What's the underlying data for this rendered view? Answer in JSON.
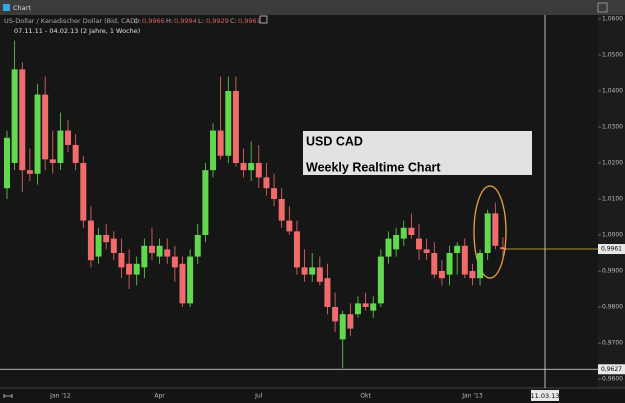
{
  "window_title": "Chart",
  "chart_data": {
    "type": "candlestick",
    "title": "US-Dollar / Kanadischer Dollar (Bid, CAD)",
    "ohlc_info": [
      {
        "label": "O:",
        "text": "0,9966"
      },
      {
        "label": "H:",
        "text": "0,9994"
      },
      {
        "label": "L:",
        "text": "0,9929"
      },
      {
        "label": "C:",
        "text": "0,9961"
      }
    ],
    "subtitle": "07.11.11 - 04.02.13 (2 Jahre, 1 Woche)",
    "annotation": [
      "USD CAD",
      "Weekly Realtime Chart"
    ],
    "categories": [
      null,
      null,
      null,
      null,
      null,
      null,
      null,
      "Jan '12",
      null,
      null,
      null,
      null,
      null,
      null,
      null,
      null,
      null,
      null,
      null,
      null,
      "Apr",
      null,
      null,
      null,
      null,
      null,
      null,
      null,
      null,
      null,
      null,
      null,
      null,
      "Jul",
      null,
      null,
      null,
      null,
      null,
      null,
      null,
      null,
      null,
      null,
      null,
      null,
      null,
      "Okt",
      null,
      null,
      null,
      null,
      null,
      null,
      null,
      null,
      null,
      null,
      null,
      null,
      null,
      "Jan '13",
      null,
      null,
      null,
      null
    ],
    "open": [
      1.013,
      1.02,
      1.046,
      1.018,
      1.017,
      1.039,
      1.021,
      1.02,
      1.029,
      1.025,
      1.02,
      1.004,
      0.994,
      1.0,
      0.999,
      0.995,
      0.992,
      0.989,
      0.991,
      0.997,
      0.994,
      0.996,
      0.994,
      0.992,
      0.981,
      0.994,
      1.0,
      1.018,
      1.029,
      1.022,
      1.04,
      1.02,
      1.018,
      1.02,
      1.016,
      1.013,
      1.01,
      1.004,
      1.001,
      0.991,
      0.989,
      0.991,
      0.988,
      0.98,
      0.971,
      0.978,
      0.978,
      0.981,
      0.979,
      0.981,
      0.994,
      0.996,
      0.999,
      1.002,
      0.999,
      0.996,
      0.995,
      0.99,
      0.989,
      0.995,
      0.997,
      0.99,
      0.988,
      0.995,
      1.006,
      0.9966
    ],
    "high": [
      1.029,
      1.054,
      1.048,
      1.024,
      1.042,
      1.044,
      1.029,
      1.034,
      1.032,
      1.028,
      1.022,
      1.008,
      1.002,
      1.003,
      1.001,
      0.999,
      0.996,
      0.994,
      0.999,
      1.002,
      0.999,
      0.999,
      0.997,
      0.994,
      0.996,
      1.003,
      1.02,
      1.031,
      1.044,
      1.044,
      1.044,
      1.024,
      1.026,
      1.025,
      1.02,
      1.017,
      1.013,
      1.008,
      1.004,
      0.996,
      0.995,
      0.994,
      0.992,
      0.984,
      0.979,
      0.981,
      0.983,
      0.984,
      0.983,
      0.996,
      1.001,
      1.002,
      1.004,
      1.006,
      1.003,
      0.999,
      0.998,
      0.993,
      0.997,
      0.998,
      0.999,
      0.992,
      0.996,
      1.007,
      1.009,
      0.9994
    ],
    "low": [
      1.01,
      1.018,
      1.012,
      1.015,
      1.014,
      1.018,
      1.017,
      1.018,
      1.023,
      1.018,
      1.002,
      0.991,
      0.992,
      0.996,
      0.993,
      0.988,
      0.985,
      0.986,
      0.988,
      0.993,
      0.992,
      0.992,
      0.987,
      0.98,
      0.98,
      0.992,
      0.998,
      1.016,
      1.021,
      1.02,
      1.019,
      1.016,
      1.015,
      1.013,
      1.011,
      1.008,
      1.002,
      1.0,
      0.989,
      0.987,
      0.987,
      0.986,
      0.978,
      0.973,
      0.963,
      0.972,
      0.977,
      0.979,
      0.977,
      0.98,
      0.992,
      0.994,
      0.997,
      0.999,
      0.993,
      0.993,
      0.988,
      0.986,
      0.986,
      0.989,
      0.988,
      0.986,
      0.986,
      0.993,
      0.996,
      0.9929
    ],
    "close": [
      1.027,
      1.046,
      1.018,
      1.017,
      1.039,
      1.021,
      1.02,
      1.029,
      1.025,
      1.02,
      1.004,
      0.993,
      1.0,
      0.998,
      0.995,
      0.991,
      0.989,
      0.992,
      0.997,
      0.995,
      0.997,
      0.994,
      0.991,
      0.981,
      0.994,
      1.0,
      1.018,
      1.029,
      1.022,
      1.04,
      1.02,
      1.018,
      1.02,
      1.016,
      1.013,
      1.01,
      1.004,
      1.001,
      0.991,
      0.989,
      0.991,
      0.987,
      0.98,
      0.976,
      0.978,
      0.974,
      0.981,
      0.98,
      0.981,
      0.994,
      0.999,
      1.0,
      1.002,
      1.0,
      0.996,
      0.995,
      0.989,
      0.988,
      0.995,
      0.997,
      0.989,
      0.988,
      0.995,
      1.006,
      0.997,
      0.9961
    ],
    "up_color": "#62d84e",
    "down_color": "#f06b6b",
    "ylim": [
      0.9575,
      1.0611
    ],
    "yticks": [
      {
        "value": 1.06,
        "label": "1,0600"
      },
      {
        "value": 1.05,
        "label": "1,0500"
      },
      {
        "value": 1.04,
        "label": "1,0400"
      },
      {
        "value": 1.03,
        "label": "1,0300"
      },
      {
        "value": 1.02,
        "label": "1,0200"
      },
      {
        "value": 1.01,
        "label": "1,0100"
      },
      {
        "value": 1.0,
        "label": "1,0000"
      },
      {
        "value": 0.99,
        "label": "0,9900"
      },
      {
        "value": 0.98,
        "label": "0,9800"
      },
      {
        "value": 0.97,
        "label": "0,9700"
      },
      {
        "value": 0.96,
        "label": "0,9600"
      }
    ],
    "last_price": {
      "value": 0.9961,
      "label": "0,9961"
    },
    "hline": {
      "value": 0.9627,
      "label": "0,9627"
    },
    "crosshair_label": "11.03.13"
  }
}
